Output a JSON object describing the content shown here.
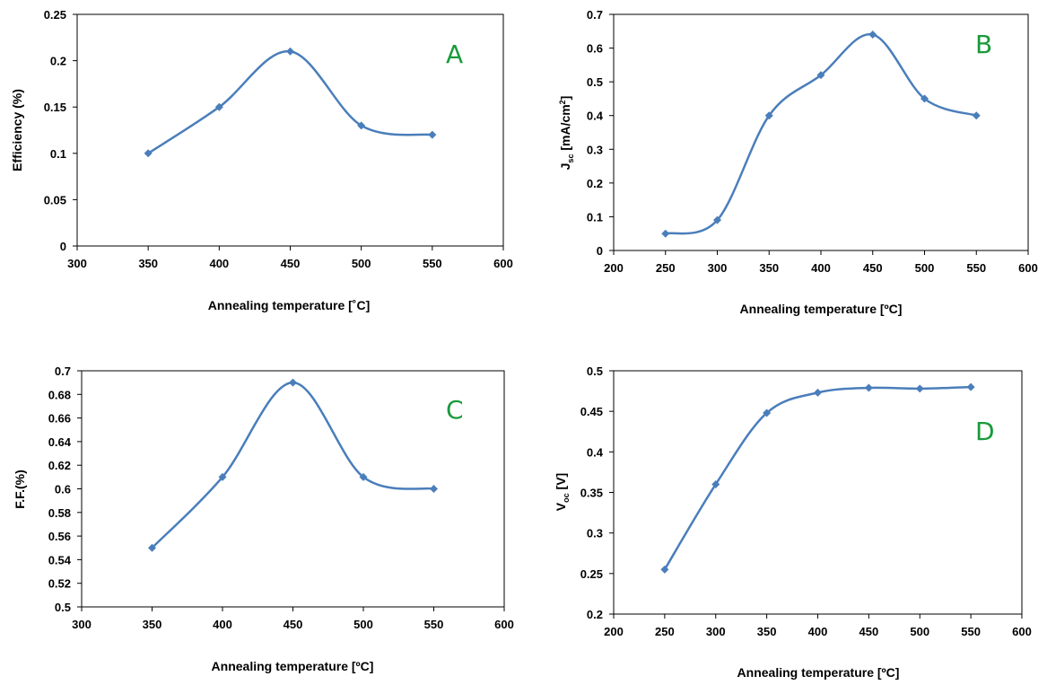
{
  "chart_data": [
    {
      "type": "line",
      "panel": "A",
      "xlabel": "Annealing temperature [˚C]",
      "ylabel": "Efficiency (%)",
      "xlim": [
        300,
        600
      ],
      "ylim": [
        0,
        0.25
      ],
      "x_ticks": [
        "300",
        "350",
        "400",
        "450",
        "500",
        "550",
        "600"
      ],
      "y_ticks": [
        "0",
        "0.05",
        "0.1",
        "0.15",
        "0.2",
        "0.25"
      ],
      "series": [
        {
          "x": [
            350,
            400,
            450,
            500,
            550
          ],
          "values": [
            0.1,
            0.15,
            0.21,
            0.13,
            0.12
          ],
          "color": "#4a7ebb"
        }
      ]
    },
    {
      "type": "line",
      "panel": "B",
      "xlabel": "Annealing temperature [ºC]",
      "ylabel": "J",
      "ylabel_sub": "sc",
      "ylabel_rest": " [mA/cm",
      "ylabel_sup": "2",
      "ylabel_end": "]",
      "xlim": [
        200,
        600
      ],
      "ylim": [
        0,
        0.7
      ],
      "x_ticks": [
        "200",
        "250",
        "300",
        "350",
        "400",
        "450",
        "500",
        "550",
        "600"
      ],
      "y_ticks": [
        "0",
        "0.1",
        "0.2",
        "0.3",
        "0.4",
        "0.5",
        "0.6",
        "0.7"
      ],
      "series": [
        {
          "x": [
            250,
            300,
            350,
            400,
            450,
            500,
            550
          ],
          "values": [
            0.05,
            0.09,
            0.4,
            0.52,
            0.64,
            0.45,
            0.4
          ],
          "color": "#4a7ebb"
        }
      ]
    },
    {
      "type": "line",
      "panel": "C",
      "xlabel": "Annealing temperature [ºC]",
      "ylabel": "F.F.(%)",
      "xlim": [
        300,
        600
      ],
      "ylim": [
        0.5,
        0.7
      ],
      "x_ticks": [
        "300",
        "350",
        "400",
        "450",
        "500",
        "550",
        "600"
      ],
      "y_ticks": [
        "0.5",
        "0.52",
        "0.54",
        "0.56",
        "0.58",
        "0.6",
        "0.62",
        "0.64",
        "0.66",
        "0.68",
        "0.7"
      ],
      "series": [
        {
          "x": [
            350,
            400,
            450,
            500,
            550
          ],
          "values": [
            0.55,
            0.61,
            0.69,
            0.61,
            0.6
          ],
          "color": "#4a7ebb"
        }
      ]
    },
    {
      "type": "line",
      "panel": "D",
      "xlabel": "Annealing temperature [ºC]",
      "ylabel": "V",
      "ylabel_sub": "oc",
      "ylabel_rest": " [V]",
      "xlim": [
        200,
        600
      ],
      "ylim": [
        0.2,
        0.5
      ],
      "x_ticks": [
        "200",
        "250",
        "300",
        "350",
        "400",
        "450",
        "500",
        "550",
        "600"
      ],
      "y_ticks": [
        "0.2",
        "0.25",
        "0.3",
        "0.35",
        "0.4",
        "0.45",
        "0.5"
      ],
      "series": [
        {
          "x": [
            250,
            300,
            350,
            400,
            450,
            500,
            550
          ],
          "values": [
            0.255,
            0.36,
            0.448,
            0.473,
            0.479,
            0.478,
            0.48
          ],
          "color": "#4a7ebb"
        }
      ]
    }
  ]
}
